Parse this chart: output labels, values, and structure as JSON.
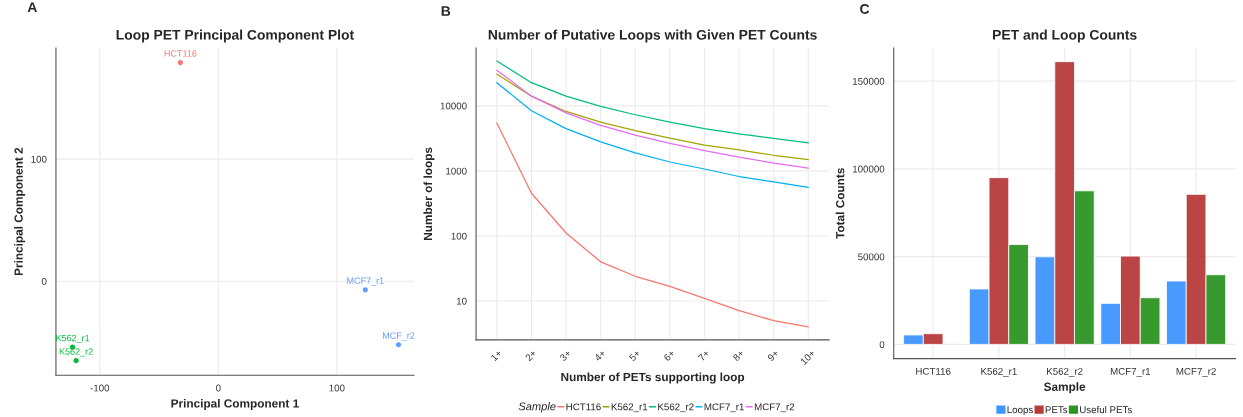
{
  "chart_data": [
    {
      "type": "scatter",
      "title": "Loop PET Principal Component Plot",
      "xlabel": "Principal Component 1",
      "ylabel": "Principal Component 2",
      "x": [
        -32,
        124,
        152,
        -123,
        -120
      ],
      "values": [
        179,
        -7,
        -52,
        -54,
        -65
      ],
      "colors": [
        "#f8766d",
        "#619cff",
        "#619cff",
        "#00ba38",
        "#00ba38"
      ],
      "xlim": [
        -137,
        165
      ],
      "ylim": [
        -77,
        191
      ],
      "xticks": [
        -100,
        0,
        100
      ],
      "yticks": [
        0,
        100
      ],
      "grid": true,
      "legend": false,
      "annotations": [
        "A",
        {
          "text": "HCT116",
          "x": -32,
          "y": 179
        },
        {
          "text": "MCF7_r1",
          "x": 124,
          "y": -7
        },
        {
          "text": "MCF_r2",
          "x": 152,
          "y": -52
        },
        {
          "text": "K562_r1",
          "x": -123,
          "y": -54
        },
        {
          "text": "K562_r2",
          "x": -120,
          "y": -65
        }
      ]
    },
    {
      "type": "line",
      "title": "Number of Putative Loops with Given PET Counts",
      "xlabel": "Number of PETs supporting loop",
      "ylabel": "Number of loops",
      "categories": [
        "1+",
        "2+",
        "3+",
        "4+",
        "5+",
        "6+",
        "7+",
        "8+",
        "9+",
        "10+"
      ],
      "series": [
        {
          "name": "HCT116",
          "color": "#f8766d",
          "values": [
            5460,
            454,
            111,
            40,
            24,
            16.8,
            11,
            7.1,
            5,
            4
          ]
        },
        {
          "name": "K562_r1",
          "color": "#a3a500",
          "values": [
            30800,
            14100,
            8200,
            5640,
            4160,
            3180,
            2500,
            2100,
            1740,
            1490
          ]
        },
        {
          "name": "K562_r2",
          "color": "#00bf7d",
          "values": [
            49000,
            22700,
            14100,
            9800,
            7300,
            5640,
            4470,
            3700,
            3150,
            2700
          ]
        },
        {
          "name": "MCF7_r1",
          "color": "#00b0f6",
          "values": [
            22700,
            8400,
            4470,
            2790,
            1890,
            1370,
            1070,
            820,
            680,
            557
          ]
        },
        {
          "name": "MCF7_r2",
          "color": "#e76bf3",
          "values": [
            35400,
            14100,
            7800,
            5000,
            3550,
            2650,
            2050,
            1630,
            1320,
            1100
          ]
        }
      ],
      "log": "y",
      "ylim": [
        2.53,
        77600
      ],
      "yticks": [
        10,
        100,
        1000,
        10000
      ],
      "grid": true,
      "legend": "bottom",
      "legend_title": "Sample",
      "annotations": [
        "B"
      ]
    },
    {
      "type": "bar",
      "title": "PET and Loop Counts",
      "xlabel": "Sample",
      "ylabel": "Total Counts",
      "categories": [
        "HCT116",
        "K562_r1",
        "K562_r2",
        "MCF7_r1",
        "MCF7_r2"
      ],
      "series": [
        {
          "name": "Loops",
          "color": "#3f95ff",
          "values": [
            5400,
            31600,
            49900,
            23400,
            36100
          ]
        },
        {
          "name": "PETs",
          "color": "#b83a3a",
          "values": [
            6100,
            95000,
            161100,
            50300,
            85500
          ]
        },
        {
          "name": "Useful PETs",
          "color": "#2e9424",
          "values": [
            null,
            56900,
            87500,
            26600,
            39700
          ]
        }
      ],
      "ylim": [
        -8100,
        168900
      ],
      "yticks": [
        0,
        50000,
        100000,
        150000
      ],
      "grid": true,
      "legend": "bottom",
      "annotations": [
        "C"
      ]
    }
  ]
}
